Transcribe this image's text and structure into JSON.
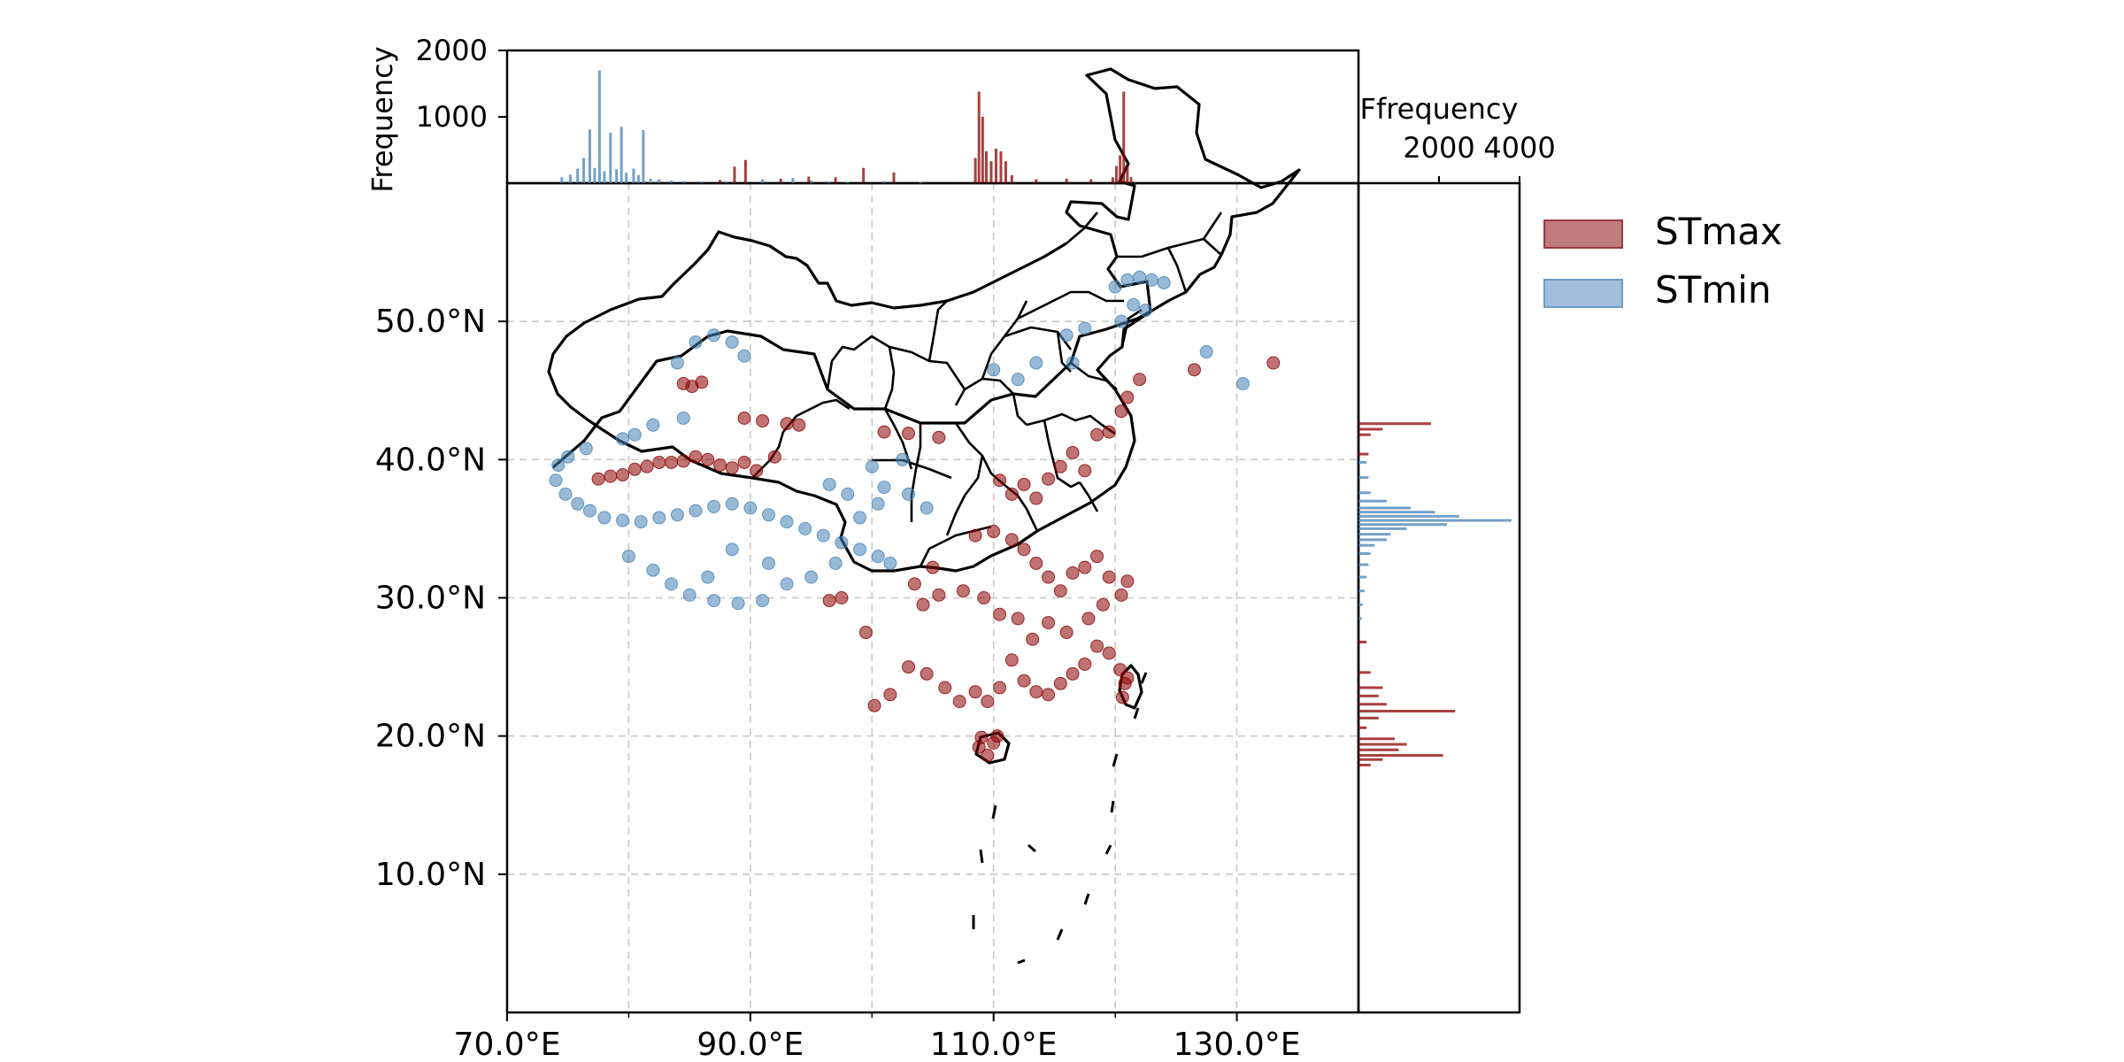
{
  "chart_data": {
    "type": "scatter",
    "main_map": {
      "x_ticks": [
        "70.0°E",
        "90.0°E",
        "110.0°E",
        "130.0°E"
      ],
      "x_tick_values": [
        70,
        90,
        110,
        130
      ],
      "y_ticks": [
        "10.0°N",
        "20.0°N",
        "30.0°N",
        "40.0°N",
        "50.0°N"
      ],
      "y_tick_values": [
        10,
        20,
        30,
        40,
        50
      ],
      "xlim": [
        70,
        140
      ],
      "ylim": [
        0,
        60
      ],
      "grid": true,
      "series": [
        {
          "name": "STmax",
          "color": "#8b0000",
          "points": [
            [
              84.5,
              45.5
            ],
            [
              85.2,
              45.3
            ],
            [
              86.0,
              45.6
            ],
            [
              89.5,
              43.0
            ],
            [
              91.0,
              42.8
            ],
            [
              93.0,
              42.6
            ],
            [
              94.0,
              42.5
            ],
            [
              77.5,
              38.6
            ],
            [
              78.5,
              38.8
            ],
            [
              79.5,
              38.9
            ],
            [
              80.5,
              39.3
            ],
            [
              81.5,
              39.5
            ],
            [
              82.5,
              39.8
            ],
            [
              83.5,
              39.8
            ],
            [
              84.5,
              39.9
            ],
            [
              85.5,
              40.2
            ],
            [
              86.5,
              40.0
            ],
            [
              87.5,
              39.6
            ],
            [
              88.5,
              39.4
            ],
            [
              89.5,
              39.8
            ],
            [
              90.5,
              39.2
            ],
            [
              92.0,
              40.2
            ],
            [
              101.0,
              42.0
            ],
            [
              103.0,
              41.9
            ],
            [
              105.5,
              41.6
            ],
            [
              110.5,
              38.5
            ],
            [
              111.5,
              37.5
            ],
            [
              112.5,
              38.2
            ],
            [
              113.5,
              37.2
            ],
            [
              114.5,
              38.6
            ],
            [
              115.5,
              39.5
            ],
            [
              116.5,
              40.5
            ],
            [
              117.5,
              39.2
            ],
            [
              118.5,
              41.8
            ],
            [
              119.5,
              42.0
            ],
            [
              120.5,
              43.5
            ],
            [
              121.0,
              44.5
            ],
            [
              122.0,
              45.8
            ],
            [
              126.5,
              46.5
            ],
            [
              133.0,
              47.0
            ],
            [
              108.5,
              34.5
            ],
            [
              110.0,
              34.8
            ],
            [
              111.5,
              34.2
            ],
            [
              112.5,
              33.5
            ],
            [
              113.5,
              32.5
            ],
            [
              114.5,
              31.5
            ],
            [
              115.5,
              30.5
            ],
            [
              116.5,
              31.8
            ],
            [
              117.5,
              32.2
            ],
            [
              118.5,
              33.0
            ],
            [
              119.5,
              31.5
            ],
            [
              120.5,
              30.2
            ],
            [
              121.0,
              31.2
            ],
            [
              119.0,
              29.5
            ],
            [
              117.8,
              28.5
            ],
            [
              116.0,
              27.5
            ],
            [
              114.5,
              28.2
            ],
            [
              113.2,
              27.0
            ],
            [
              112.0,
              28.5
            ],
            [
              110.5,
              28.8
            ],
            [
              109.2,
              30.0
            ],
            [
              107.5,
              30.5
            ],
            [
              105.5,
              30.2
            ],
            [
              104.2,
              29.5
            ],
            [
              103.5,
              31.0
            ],
            [
              105.0,
              32.2
            ],
            [
              111.5,
              25.5
            ],
            [
              112.5,
              24.0
            ],
            [
              113.5,
              23.2
            ],
            [
              114.5,
              23.0
            ],
            [
              115.5,
              23.8
            ],
            [
              116.5,
              24.5
            ],
            [
              117.5,
              25.2
            ],
            [
              118.5,
              26.5
            ],
            [
              119.5,
              26.0
            ],
            [
              110.5,
              23.5
            ],
            [
              109.5,
              22.5
            ],
            [
              108.5,
              23.2
            ],
            [
              107.2,
              22.5
            ],
            [
              106.0,
              23.5
            ],
            [
              104.5,
              24.5
            ],
            [
              103.0,
              25.0
            ],
            [
              101.5,
              23.0
            ],
            [
              100.2,
              22.2
            ],
            [
              110.0,
              19.5
            ],
            [
              109.5,
              18.6
            ],
            [
              108.8,
              19.2
            ],
            [
              110.3,
              20.0
            ],
            [
              109.0,
              19.9
            ],
            [
              120.4,
              24.8
            ],
            [
              120.8,
              23.8
            ],
            [
              120.6,
              22.8
            ],
            [
              121.0,
              24.2
            ],
            [
              97.5,
              30.0
            ],
            [
              99.5,
              27.5
            ],
            [
              96.5,
              29.8
            ]
          ]
        },
        {
          "name": "STmin",
          "color": "#4682b4",
          "points": [
            [
              85.5,
              48.5
            ],
            [
              87.0,
              49.0
            ],
            [
              88.5,
              48.5
            ],
            [
              89.5,
              47.5
            ],
            [
              84.0,
              47.0
            ],
            [
              84.5,
              43.0
            ],
            [
              82.0,
              42.5
            ],
            [
              80.5,
              41.8
            ],
            [
              79.5,
              41.5
            ],
            [
              76.5,
              40.8
            ],
            [
              75.0,
              40.2
            ],
            [
              74.2,
              39.6
            ],
            [
              74.0,
              38.5
            ],
            [
              74.8,
              37.5
            ],
            [
              75.8,
              36.8
            ],
            [
              76.8,
              36.3
            ],
            [
              78.0,
              35.8
            ],
            [
              79.5,
              35.6
            ],
            [
              81.0,
              35.5
            ],
            [
              82.5,
              35.8
            ],
            [
              84.0,
              36.0
            ],
            [
              85.5,
              36.3
            ],
            [
              87.0,
              36.6
            ],
            [
              88.5,
              36.8
            ],
            [
              90.0,
              36.5
            ],
            [
              91.5,
              36.0
            ],
            [
              93.0,
              35.5
            ],
            [
              94.5,
              35.0
            ],
            [
              96.0,
              34.5
            ],
            [
              97.5,
              34.0
            ],
            [
              99.0,
              33.5
            ],
            [
              100.5,
              33.0
            ],
            [
              101.5,
              32.5
            ],
            [
              80.0,
              33.0
            ],
            [
              82.0,
              32.0
            ],
            [
              83.5,
              31.0
            ],
            [
              85.0,
              30.2
            ],
            [
              87.0,
              29.8
            ],
            [
              89.0,
              29.6
            ],
            [
              91.0,
              29.8
            ],
            [
              93.0,
              31.0
            ],
            [
              95.0,
              31.5
            ],
            [
              97.0,
              32.5
            ],
            [
              99.0,
              35.8
            ],
            [
              100.5,
              36.8
            ],
            [
              98.0,
              37.5
            ],
            [
              96.5,
              38.2
            ],
            [
              101.0,
              38.0
            ],
            [
              103.0,
              37.5
            ],
            [
              104.5,
              36.5
            ],
            [
              120.0,
              52.5
            ],
            [
              121.0,
              53.0
            ],
            [
              122.0,
              53.2
            ],
            [
              123.0,
              53.0
            ],
            [
              124.0,
              52.8
            ],
            [
              121.5,
              51.2
            ],
            [
              120.5,
              50.0
            ],
            [
              122.5,
              50.8
            ],
            [
              117.5,
              49.5
            ],
            [
              116.0,
              49.0
            ],
            [
              116.5,
              47.0
            ],
            [
              127.5,
              47.8
            ],
            [
              130.5,
              45.5
            ],
            [
              113.5,
              47.0
            ],
            [
              112.0,
              45.8
            ],
            [
              110.0,
              46.5
            ],
            [
              100.0,
              39.5
            ],
            [
              102.5,
              40.0
            ],
            [
              88.5,
              33.5
            ],
            [
              86.5,
              31.5
            ],
            [
              91.5,
              32.5
            ]
          ]
        }
      ]
    },
    "top_histogram": {
      "ylabel": "Frequency",
      "y_ticks": [
        "1000",
        "2000"
      ],
      "y_tick_values": [
        1000,
        2000
      ],
      "ylim": [
        0,
        2000
      ],
      "xlim": [
        70,
        140
      ],
      "series": [
        {
          "name": "STmin",
          "color": "#4682b4",
          "bins": [
            [
              74.5,
              90
            ],
            [
              75.2,
              130
            ],
            [
              75.8,
              220
            ],
            [
              76.3,
              380
            ],
            [
              76.8,
              810
            ],
            [
              77.2,
              230
            ],
            [
              77.6,
              1700
            ],
            [
              78.0,
              180
            ],
            [
              78.5,
              760
            ],
            [
              79.0,
              210
            ],
            [
              79.4,
              850
            ],
            [
              79.8,
              160
            ],
            [
              80.4,
              220
            ],
            [
              80.8,
              120
            ],
            [
              81.2,
              800
            ],
            [
              81.8,
              70
            ],
            [
              82.5,
              60
            ],
            [
              83.5,
              40
            ],
            [
              84.5,
              30
            ],
            [
              86.0,
              25
            ],
            [
              88.0,
              30
            ],
            [
              91.0,
              60
            ],
            [
              93.5,
              80
            ],
            [
              95.0,
              40
            ],
            [
              96.5,
              25
            ],
            [
              98.0,
              20
            ],
            [
              101.0,
              30
            ],
            [
              104.0,
              20
            ]
          ]
        },
        {
          "name": "STmax",
          "color": "#8b0000",
          "bins": [
            [
              87.5,
              50
            ],
            [
              88.7,
              250
            ],
            [
              89.6,
              350
            ],
            [
              92.5,
              70
            ],
            [
              94.8,
              100
            ],
            [
              97.0,
              90
            ],
            [
              99.3,
              230
            ],
            [
              101.8,
              160
            ],
            [
              108.5,
              380
            ],
            [
              108.8,
              1380
            ],
            [
              109.1,
              1000
            ],
            [
              109.4,
              480
            ],
            [
              109.8,
              330
            ],
            [
              110.2,
              520
            ],
            [
              110.6,
              480
            ],
            [
              111.0,
              330
            ],
            [
              111.5,
              120
            ],
            [
              113.5,
              60
            ],
            [
              116.0,
              70
            ],
            [
              118.0,
              60
            ],
            [
              119.8,
              90
            ],
            [
              120.1,
              260
            ],
            [
              120.4,
              420
            ],
            [
              120.7,
              1380
            ],
            [
              121.0,
              260
            ],
            [
              121.3,
              90
            ]
          ]
        }
      ]
    },
    "right_histogram": {
      "xlabel": "Ffrequency",
      "x_ticks": [
        "2000",
        "4000"
      ],
      "x_tick_values": [
        2000,
        4000
      ],
      "xlim": [
        0,
        4000
      ],
      "ylim": [
        0,
        60
      ],
      "series": [
        {
          "name": "STmin",
          "color": "#4682b4",
          "bins": [
            [
              39.8,
              200
            ],
            [
              38.7,
              250
            ],
            [
              37.6,
              300
            ],
            [
              37.0,
              700
            ],
            [
              36.5,
              1300
            ],
            [
              36.2,
              1900
            ],
            [
              35.9,
              2500
            ],
            [
              35.6,
              3800
            ],
            [
              35.3,
              2200
            ],
            [
              35.0,
              1200
            ],
            [
              34.6,
              800
            ],
            [
              34.2,
              700
            ],
            [
              33.8,
              400
            ],
            [
              33.2,
              300
            ],
            [
              32.4,
              250
            ],
            [
              31.5,
              200
            ],
            [
              30.5,
              150
            ],
            [
              29.5,
              100
            ],
            [
              28.5,
              80
            ]
          ]
        },
        {
          "name": "STmax",
          "color": "#8b0000",
          "bins": [
            [
              42.6,
              1800
            ],
            [
              42.2,
              600
            ],
            [
              41.8,
              300
            ],
            [
              40.4,
              250
            ],
            [
              26.8,
              200
            ],
            [
              24.6,
              300
            ],
            [
              23.5,
              600
            ],
            [
              22.9,
              500
            ],
            [
              22.3,
              700
            ],
            [
              21.8,
              2400
            ],
            [
              21.3,
              500
            ],
            [
              20.6,
              200
            ],
            [
              19.8,
              900
            ],
            [
              19.4,
              1200
            ],
            [
              19.0,
              1000
            ],
            [
              18.6,
              2100
            ],
            [
              18.3,
              600
            ],
            [
              17.9,
              300
            ]
          ]
        }
      ]
    },
    "legend": {
      "placement": "right",
      "items": [
        {
          "label": "STmax",
          "fill": "#bf7b7e",
          "edge": "#9c3a3f"
        },
        {
          "label": "STmin",
          "fill": "#9fbfdb",
          "edge": "#6f9cc4"
        }
      ]
    }
  }
}
